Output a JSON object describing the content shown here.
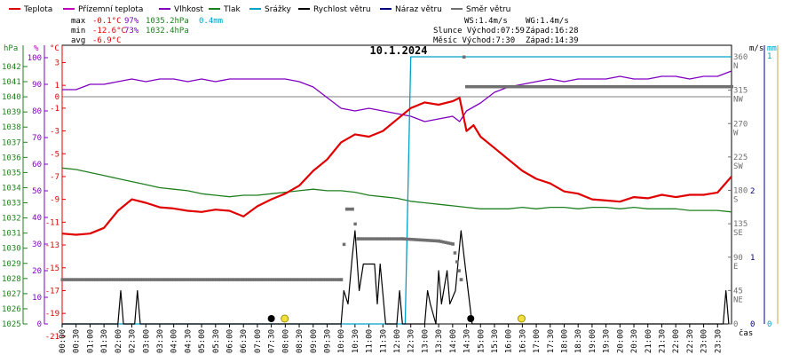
{
  "legend": [
    {
      "label": "Teplota",
      "color": "#e00000"
    },
    {
      "label": "Přízemní teplota",
      "color": "#c000c0"
    },
    {
      "label": "Vlhkost",
      "color": "#8000c0"
    },
    {
      "label": "Tlak",
      "color": "#208020"
    },
    {
      "label": "Srážky",
      "color": "#00a0c8"
    },
    {
      "label": "Rychlost větru",
      "color": "#000000"
    },
    {
      "label": "Náraz větru",
      "color": "#000080"
    },
    {
      "label": "Směr větru",
      "color": "#707070"
    }
  ],
  "stats": {
    "max_label": "max",
    "max_temp": "-0.1°C",
    "max_hum": "97%",
    "max_press": "1035.2hPa",
    "max_rain": "0.4mm",
    "min_label": "min",
    "min_temp": "-12.6°C",
    "min_hum": "73%",
    "min_press": "1032.4hPa",
    "avg_label": "avg",
    "avg_temp": "-6.9°C",
    "ws": "WS:1.4m/s",
    "wg": "WG:1.4m/s",
    "sun_rise": "Slunce Východ:07:59",
    "sun_set": "Západ:16:28",
    "moon_rise": "Měsíc Východ:7:30",
    "moon_set": "Západ:14:39"
  },
  "title": "10.1.2024",
  "axes": {
    "hpa_label": "hPa",
    "pct_label": "%",
    "c_label": "°C",
    "ms_label": "m/s",
    "mm_label": "mm",
    "x_label": "čas",
    "hpa_ticks": [
      "1042",
      "1041",
      "1040",
      "1039",
      "1038",
      "1037",
      "1036",
      "1035",
      "1034",
      "1033",
      "1032",
      "1031",
      "1030",
      "1029",
      "1028",
      "1027",
      "1026",
      "1025"
    ],
    "pct_ticks": [
      "100",
      "90",
      "80",
      "70",
      "60",
      "50",
      "40",
      "30",
      "20",
      "10",
      "0"
    ],
    "c_ticks": [
      "3",
      "1",
      "-1",
      "-3",
      "-5",
      "-7",
      "-9",
      "-11",
      "-13",
      "-15",
      "-17",
      "-19",
      "-21",
      "-23"
    ],
    "c_zero": "0",
    "dir_ticks": [
      {
        "deg": "360",
        "dir": "N"
      },
      {
        "deg": "315",
        "dir": "NW"
      },
      {
        "deg": "270",
        "dir": "W"
      },
      {
        "deg": "225",
        "dir": "SW"
      },
      {
        "deg": "180",
        "dir": "S"
      },
      {
        "deg": "135",
        "dir": "SE"
      },
      {
        "deg": "90",
        "dir": "E"
      },
      {
        "deg": "45",
        "dir": "NE"
      },
      {
        "deg": "0",
        "dir": ""
      }
    ],
    "ms_ticks": [
      "2",
      "1",
      "0"
    ],
    "mm_ticks": [
      "1",
      "0"
    ],
    "x_ticks": [
      "00:00",
      "00:30",
      "01:00",
      "01:30",
      "02:00",
      "02:30",
      "03:00",
      "03:30",
      "04:00",
      "04:30",
      "05:00",
      "05:30",
      "06:00",
      "06:30",
      "07:00",
      "07:30",
      "08:00",
      "08:30",
      "09:00",
      "09:30",
      "10:00",
      "10:30",
      "11:00",
      "11:30",
      "12:00",
      "12:30",
      "13:00",
      "13:30",
      "14:00",
      "14:30",
      "15:00",
      "15:30",
      "16:00",
      "16:30",
      "17:00",
      "17:30",
      "18:00",
      "18:30",
      "19:00",
      "19:30",
      "20:00",
      "20:30",
      "21:00",
      "21:30",
      "22:00",
      "22:30",
      "23:00",
      "23:30"
    ]
  },
  "chart_data": {
    "type": "line",
    "x_unit": "hour of day",
    "temperature": {
      "unit": "°C",
      "points": [
        [
          0,
          -12
        ],
        [
          0.5,
          -12.1
        ],
        [
          1,
          -12
        ],
        [
          1.5,
          -11.5
        ],
        [
          2,
          -10
        ],
        [
          2.5,
          -9
        ],
        [
          3,
          -9.3
        ],
        [
          3.5,
          -9.7
        ],
        [
          4,
          -9.8
        ],
        [
          4.5,
          -10
        ],
        [
          5,
          -10.1
        ],
        [
          5.5,
          -9.9
        ],
        [
          6,
          -10
        ],
        [
          6.5,
          -10.5
        ],
        [
          7,
          -9.6
        ],
        [
          7.5,
          -9
        ],
        [
          8,
          -8.5
        ],
        [
          8.5,
          -7.8
        ],
        [
          9,
          -6.5
        ],
        [
          9.5,
          -5.5
        ],
        [
          10,
          -4
        ],
        [
          10.5,
          -3.3
        ],
        [
          11,
          -3.5
        ],
        [
          11.5,
          -3
        ],
        [
          12,
          -2
        ],
        [
          12.5,
          -1
        ],
        [
          13,
          -0.5
        ],
        [
          13.5,
          -0.7
        ],
        [
          14,
          -0.4
        ],
        [
          14.25,
          -0.1
        ],
        [
          14.5,
          -3
        ],
        [
          14.75,
          -2.5
        ],
        [
          15,
          -3.5
        ],
        [
          15.5,
          -4.5
        ],
        [
          16,
          -5.5
        ],
        [
          16.5,
          -6.5
        ],
        [
          17,
          -7.2
        ],
        [
          17.5,
          -7.6
        ],
        [
          18,
          -8.3
        ],
        [
          18.5,
          -8.5
        ],
        [
          19,
          -9
        ],
        [
          19.5,
          -9.1
        ],
        [
          20,
          -9.2
        ],
        [
          20.5,
          -8.8
        ],
        [
          21,
          -8.9
        ],
        [
          21.5,
          -8.6
        ],
        [
          22,
          -8.8
        ],
        [
          22.5,
          -8.6
        ],
        [
          23,
          -8.6
        ],
        [
          23.5,
          -8.4
        ],
        [
          24,
          -7
        ]
      ]
    },
    "humidity": {
      "unit": "%",
      "points": [
        [
          0,
          88
        ],
        [
          0.5,
          88
        ],
        [
          1,
          90
        ],
        [
          1.5,
          90
        ],
        [
          2,
          91
        ],
        [
          2.5,
          92
        ],
        [
          3,
          91
        ],
        [
          3.5,
          92
        ],
        [
          4,
          92
        ],
        [
          4.5,
          91
        ],
        [
          5,
          92
        ],
        [
          5.5,
          91
        ],
        [
          6,
          92
        ],
        [
          6.5,
          92
        ],
        [
          7,
          92
        ],
        [
          7.5,
          92
        ],
        [
          8,
          92
        ],
        [
          8.5,
          91
        ],
        [
          9,
          89
        ],
        [
          9.5,
          85
        ],
        [
          10,
          81
        ],
        [
          10.5,
          80
        ],
        [
          11,
          81
        ],
        [
          11.5,
          80
        ],
        [
          12,
          79
        ],
        [
          12.5,
          78
        ],
        [
          13,
          76
        ],
        [
          13.5,
          77
        ],
        [
          14,
          78
        ],
        [
          14.25,
          76
        ],
        [
          14.5,
          80
        ],
        [
          15,
          83
        ],
        [
          15.5,
          87
        ],
        [
          16,
          89
        ],
        [
          16.5,
          90
        ],
        [
          17,
          91
        ],
        [
          17.5,
          92
        ],
        [
          18,
          91
        ],
        [
          18.5,
          92
        ],
        [
          19,
          92
        ],
        [
          19.5,
          92
        ],
        [
          20,
          93
        ],
        [
          20.5,
          92
        ],
        [
          21,
          92
        ],
        [
          21.5,
          93
        ],
        [
          22,
          93
        ],
        [
          22.5,
          92
        ],
        [
          23,
          93
        ],
        [
          23.5,
          93
        ],
        [
          24,
          95
        ]
      ]
    },
    "pressure": {
      "unit": "hPa",
      "points": [
        [
          0,
          1035.3
        ],
        [
          0.5,
          1035.2
        ],
        [
          1,
          1035.0
        ],
        [
          1.5,
          1034.8
        ],
        [
          2,
          1034.6
        ],
        [
          2.5,
          1034.4
        ],
        [
          3,
          1034.2
        ],
        [
          3.5,
          1034.0
        ],
        [
          4,
          1033.9
        ],
        [
          4.5,
          1033.8
        ],
        [
          5,
          1033.6
        ],
        [
          5.5,
          1033.5
        ],
        [
          6,
          1033.4
        ],
        [
          6.5,
          1033.5
        ],
        [
          7,
          1033.5
        ],
        [
          7.5,
          1033.6
        ],
        [
          8,
          1033.7
        ],
        [
          8.5,
          1033.8
        ],
        [
          9,
          1033.9
        ],
        [
          9.5,
          1033.8
        ],
        [
          10,
          1033.8
        ],
        [
          10.5,
          1033.7
        ],
        [
          11,
          1033.5
        ],
        [
          11.5,
          1033.4
        ],
        [
          12,
          1033.3
        ],
        [
          12.5,
          1033.1
        ],
        [
          13,
          1033.0
        ],
        [
          13.5,
          1032.9
        ],
        [
          14,
          1032.8
        ],
        [
          14.5,
          1032.7
        ],
        [
          15,
          1032.6
        ],
        [
          15.5,
          1032.6
        ],
        [
          16,
          1032.6
        ],
        [
          16.5,
          1032.7
        ],
        [
          17,
          1032.6
        ],
        [
          17.5,
          1032.7
        ],
        [
          18,
          1032.7
        ],
        [
          18.5,
          1032.6
        ],
        [
          19,
          1032.7
        ],
        [
          19.5,
          1032.7
        ],
        [
          20,
          1032.6
        ],
        [
          20.5,
          1032.7
        ],
        [
          21,
          1032.6
        ],
        [
          21.5,
          1032.6
        ],
        [
          22,
          1032.6
        ],
        [
          22.5,
          1032.5
        ],
        [
          23,
          1032.5
        ],
        [
          23.5,
          1032.5
        ],
        [
          24,
          1032.4
        ]
      ]
    },
    "precipitation": {
      "unit": "mm",
      "points": [
        [
          0,
          0
        ],
        [
          12.3,
          0
        ],
        [
          12.5,
          0.4
        ],
        [
          24,
          0.4
        ]
      ]
    },
    "wind_speed": {
      "unit": "m/s",
      "points": [
        [
          0,
          0
        ],
        [
          2,
          0
        ],
        [
          2.1,
          0.5
        ],
        [
          2.2,
          0
        ],
        [
          2.6,
          0
        ],
        [
          2.7,
          0.5
        ],
        [
          2.8,
          0
        ],
        [
          10.0,
          0
        ],
        [
          10.1,
          0.5
        ],
        [
          10.25,
          0.3
        ],
        [
          10.4,
          1.0
        ],
        [
          10.5,
          1.4
        ],
        [
          10.65,
          0.5
        ],
        [
          10.8,
          0.9
        ],
        [
          11.2,
          0.9
        ],
        [
          11.3,
          0.3
        ],
        [
          11.4,
          0.9
        ],
        [
          11.6,
          0
        ],
        [
          12.0,
          0
        ],
        [
          12.1,
          0.5
        ],
        [
          12.2,
          0
        ],
        [
          13.0,
          0
        ],
        [
          13.1,
          0.5
        ],
        [
          13.2,
          0.3
        ],
        [
          13.4,
          0
        ],
        [
          13.5,
          0.8
        ],
        [
          13.6,
          0.3
        ],
        [
          13.8,
          0.8
        ],
        [
          13.9,
          0.3
        ],
        [
          14.1,
          0.5
        ],
        [
          14.3,
          1.4
        ],
        [
          14.5,
          0.7
        ],
        [
          14.7,
          0
        ],
        [
          23.7,
          0
        ],
        [
          23.8,
          0.5
        ],
        [
          23.9,
          0
        ]
      ]
    },
    "wind_direction": {
      "unit": "°",
      "points": [
        [
          0,
          60
        ],
        [
          10.0,
          60
        ],
        [
          10.2,
          155
        ],
        [
          10.4,
          155
        ],
        [
          10.6,
          115
        ],
        [
          12.2,
          115
        ],
        [
          13.5,
          112
        ],
        [
          14.0,
          108
        ],
        [
          14.3,
          60
        ],
        [
          14.4,
          360
        ],
        [
          14.5,
          320
        ],
        [
          24,
          320
        ]
      ]
    },
    "sunrise_hour": 7.98,
    "sunset_hour": 16.47,
    "moonrise_hour": 7.5,
    "moonset_hour": 14.65
  }
}
